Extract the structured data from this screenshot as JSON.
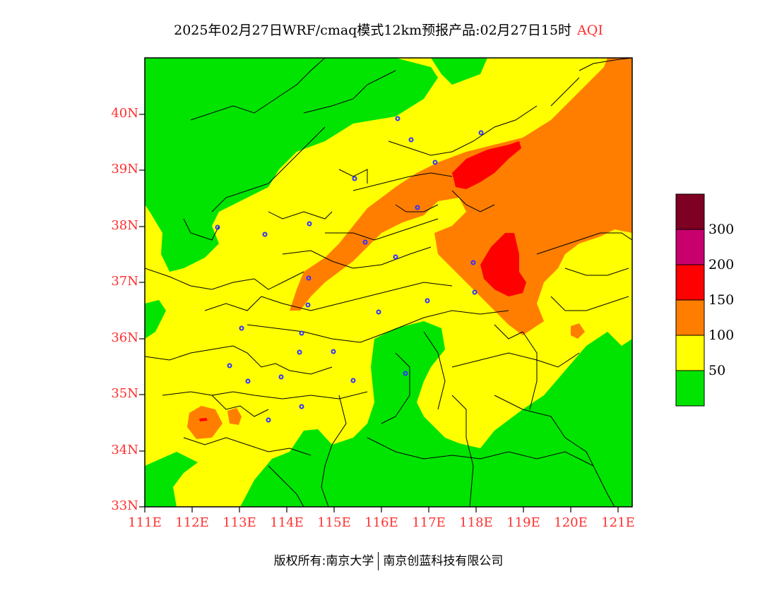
{
  "title": {
    "main": "2025年02月27日WRF/cmaq模式12km预报产品:02月27日15时",
    "variable": "AQI"
  },
  "colors": {
    "good": "#00e400",
    "moderate": "#ffff00",
    "usg": "#ff7e00",
    "unhealthy": "#ff0000",
    "very_unhealthy": "#c8006e",
    "hazardous": "#7e0023",
    "axis_label": "#ff3030",
    "city_marker": "#3333ff",
    "boundary": "#000000"
  },
  "axes": {
    "lat_labels": [
      "40N",
      "39N",
      "38N",
      "37N",
      "36N",
      "35N",
      "34N",
      "33N"
    ],
    "lon_labels": [
      "111E",
      "112E",
      "113E",
      "114E",
      "115E",
      "116E",
      "117E",
      "118E",
      "119E",
      "120E",
      "121E"
    ],
    "lat_range": [
      33,
      41
    ],
    "lon_range": [
      111,
      121.3
    ]
  },
  "legend": {
    "labels": [
      "300",
      "200",
      "150",
      "100",
      "50"
    ]
  },
  "footer": {
    "copyright": "版权所有:南京大学",
    "company": "南京创蓝科技有限公司"
  }
}
